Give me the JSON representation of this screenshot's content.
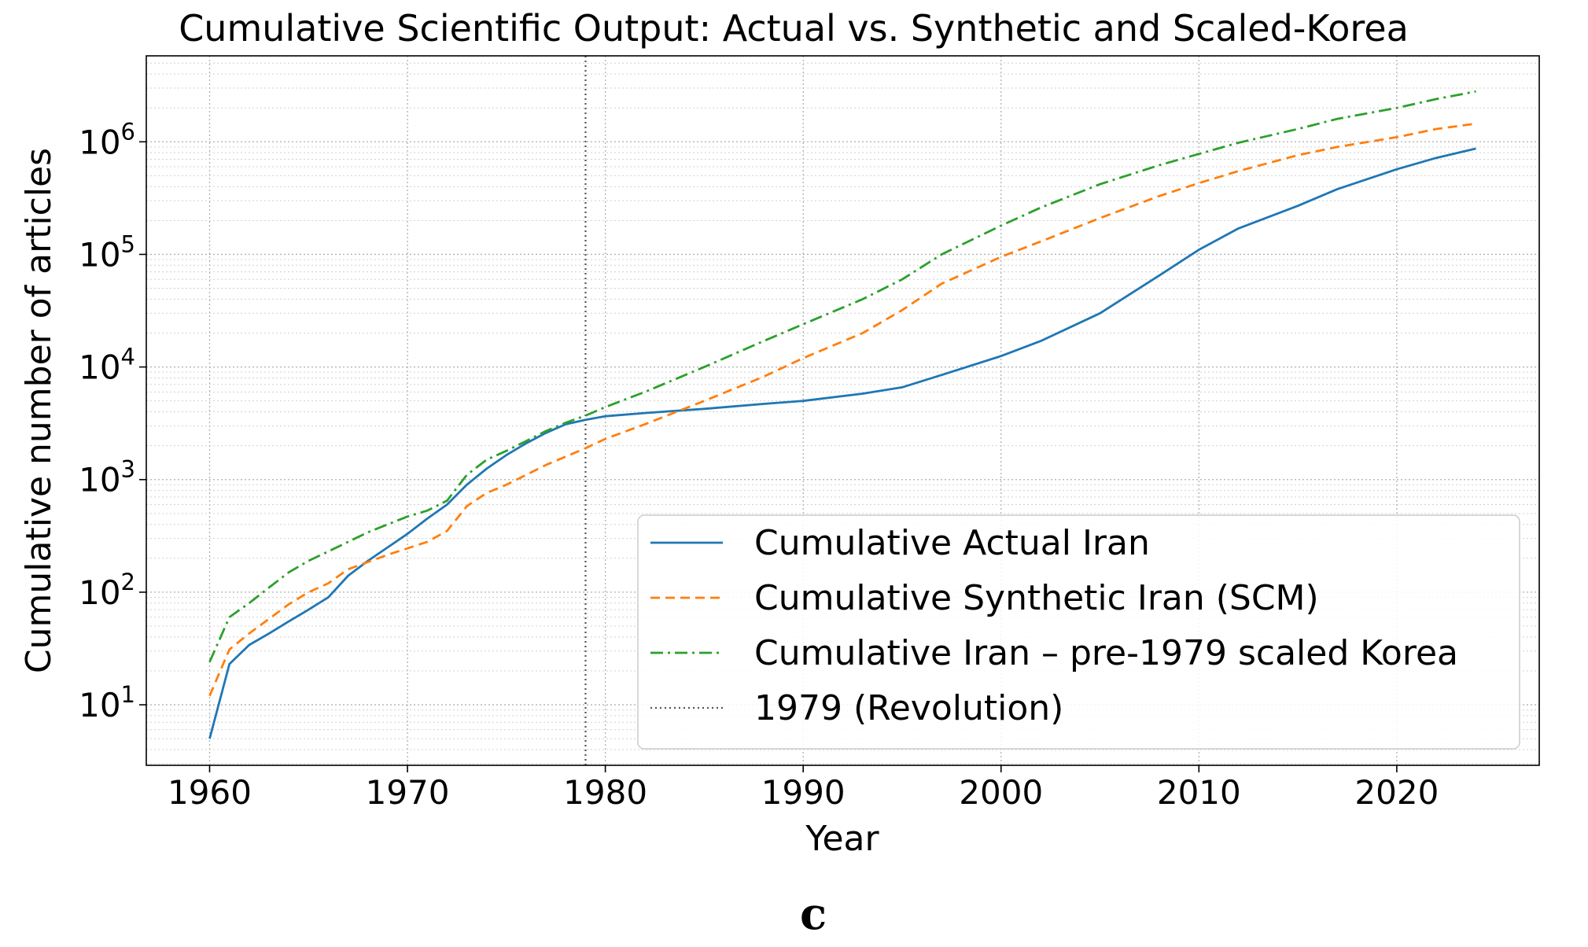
{
  "chart_data": {
    "type": "line",
    "title": "Cumulative Scientific Output: Actual vs. Synthetic and Scaled-Korea",
    "xlabel": "Year",
    "ylabel": "Cumulative number of articles",
    "yscale": "log",
    "xlim": [
      1956.8,
      2027.2
    ],
    "ylim": [
      2.9,
      5800000
    ],
    "xticks": [
      1960,
      1970,
      1980,
      1990,
      2000,
      2010,
      2020
    ],
    "yticks": [
      {
        "value": 10,
        "base": "10",
        "exp": "1"
      },
      {
        "value": 100,
        "base": "10",
        "exp": "2"
      },
      {
        "value": 1000,
        "base": "10",
        "exp": "3"
      },
      {
        "value": 10000,
        "base": "10",
        "exp": "4"
      },
      {
        "value": 100000,
        "base": "10",
        "exp": "5"
      },
      {
        "value": 1000000,
        "base": "10",
        "exp": "6"
      }
    ],
    "grid": true,
    "legend_position": "lower-right",
    "panel_label": "c",
    "series": [
      {
        "name": "Cumulative Actual Iran",
        "color": "#1f77b4",
        "style": "solid",
        "x": [
          1960,
          1961,
          1962,
          1963,
          1964,
          1965,
          1966,
          1967,
          1968,
          1969,
          1970,
          1971,
          1972,
          1973,
          1974,
          1975,
          1976,
          1977,
          1978,
          1979,
          1980,
          1982,
          1985,
          1988,
          1990,
          1993,
          1995,
          1997,
          2000,
          2002,
          2005,
          2008,
          2010,
          2012,
          2015,
          2017,
          2020,
          2022,
          2024
        ],
        "values": [
          5,
          23,
          34,
          43,
          55,
          70,
          90,
          140,
          190,
          250,
          330,
          450,
          600,
          900,
          1250,
          1650,
          2100,
          2600,
          3100,
          3400,
          3650,
          3900,
          4250,
          4700,
          5000,
          5800,
          6600,
          8500,
          12500,
          17000,
          30000,
          65000,
          110000,
          170000,
          270000,
          380000,
          570000,
          720000,
          870000
        ]
      },
      {
        "name": "Cumulative Synthetic Iran (SCM)",
        "color": "#ff7f0e",
        "style": "dashed",
        "x": [
          1960,
          1961,
          1962,
          1963,
          1964,
          1965,
          1966,
          1967,
          1968,
          1969,
          1970,
          1971,
          1972,
          1973,
          1974,
          1975,
          1976,
          1977,
          1978,
          1979,
          1980,
          1982,
          1985,
          1988,
          1990,
          1993,
          1995,
          1997,
          2000,
          2002,
          2005,
          2008,
          2010,
          2012,
          2015,
          2017,
          2020,
          2022,
          2024
        ],
        "values": [
          12,
          31,
          43,
          58,
          78,
          100,
          120,
          160,
          185,
          215,
          245,
          280,
          350,
          580,
          760,
          900,
          1100,
          1350,
          1600,
          1900,
          2300,
          3100,
          5000,
          8200,
          12000,
          20000,
          32000,
          55000,
          95000,
          130000,
          210000,
          330000,
          430000,
          550000,
          760000,
          900000,
          1100000,
          1300000,
          1450000
        ]
      },
      {
        "name": "Cumulative Iran – pre-1979 scaled Korea",
        "color": "#2ca02c",
        "style": "dashdot",
        "x": [
          1960,
          1961,
          1962,
          1963,
          1964,
          1965,
          1966,
          1967,
          1968,
          1969,
          1970,
          1971,
          1972,
          1973,
          1974,
          1975,
          1976,
          1977,
          1978,
          1979,
          1980,
          1982,
          1985,
          1988,
          1990,
          1993,
          1995,
          1997,
          2000,
          2002,
          2005,
          2008,
          2010,
          2012,
          2015,
          2017,
          2020,
          2022,
          2024
        ],
        "values": [
          24,
          60,
          80,
          110,
          150,
          190,
          230,
          280,
          340,
          400,
          470,
          530,
          650,
          1100,
          1500,
          1800,
          2200,
          2700,
          3200,
          3700,
          4400,
          6000,
          10000,
          17000,
          24000,
          40000,
          60000,
          100000,
          180000,
          260000,
          420000,
          620000,
          780000,
          980000,
          1300000,
          1600000,
          2000000,
          2400000,
          2800000
        ]
      },
      {
        "name": "1979 (Revolution)",
        "color": "#555555",
        "style": "dotted",
        "vline_x": 1979
      }
    ]
  }
}
